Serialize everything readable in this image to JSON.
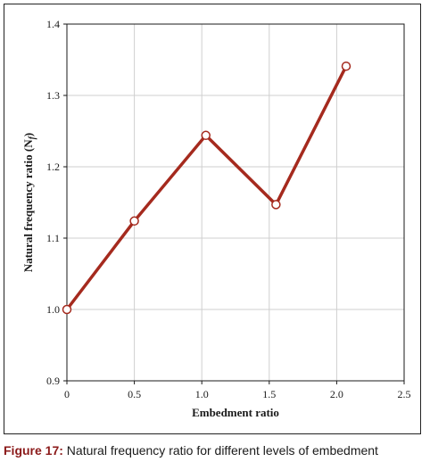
{
  "chart_data": {
    "type": "line",
    "title": "",
    "xlabel": "Embedment ratio",
    "ylabel_main": "Natural frequency ratio (N",
    "ylabel_sub": "f",
    "ylabel_close": ")",
    "xlim": [
      0,
      2.5
    ],
    "ylim": [
      0.9,
      1.4
    ],
    "x_ticks": [
      0,
      0.5,
      1.0,
      1.5,
      2.0,
      2.5
    ],
    "x_tick_labels": [
      "0",
      "0.5",
      "1.0",
      "1.5",
      "2.0",
      "2.5"
    ],
    "y_ticks": [
      0.9,
      1.0,
      1.1,
      1.2,
      1.3,
      1.4
    ],
    "y_tick_labels": [
      "0.9",
      "1.0",
      "1.1",
      "1.2",
      "1.3",
      "1.4"
    ],
    "grid": true,
    "series": [
      {
        "x": [
          0,
          0.5,
          1.03,
          1.55,
          2.07
        ],
        "y": [
          1.0,
          1.124,
          1.244,
          1.147,
          1.341
        ],
        "color": "#a52a1e"
      }
    ]
  },
  "caption": {
    "label": "Figure 17:",
    "text": " Natural frequency ratio for different levels of embedment"
  }
}
